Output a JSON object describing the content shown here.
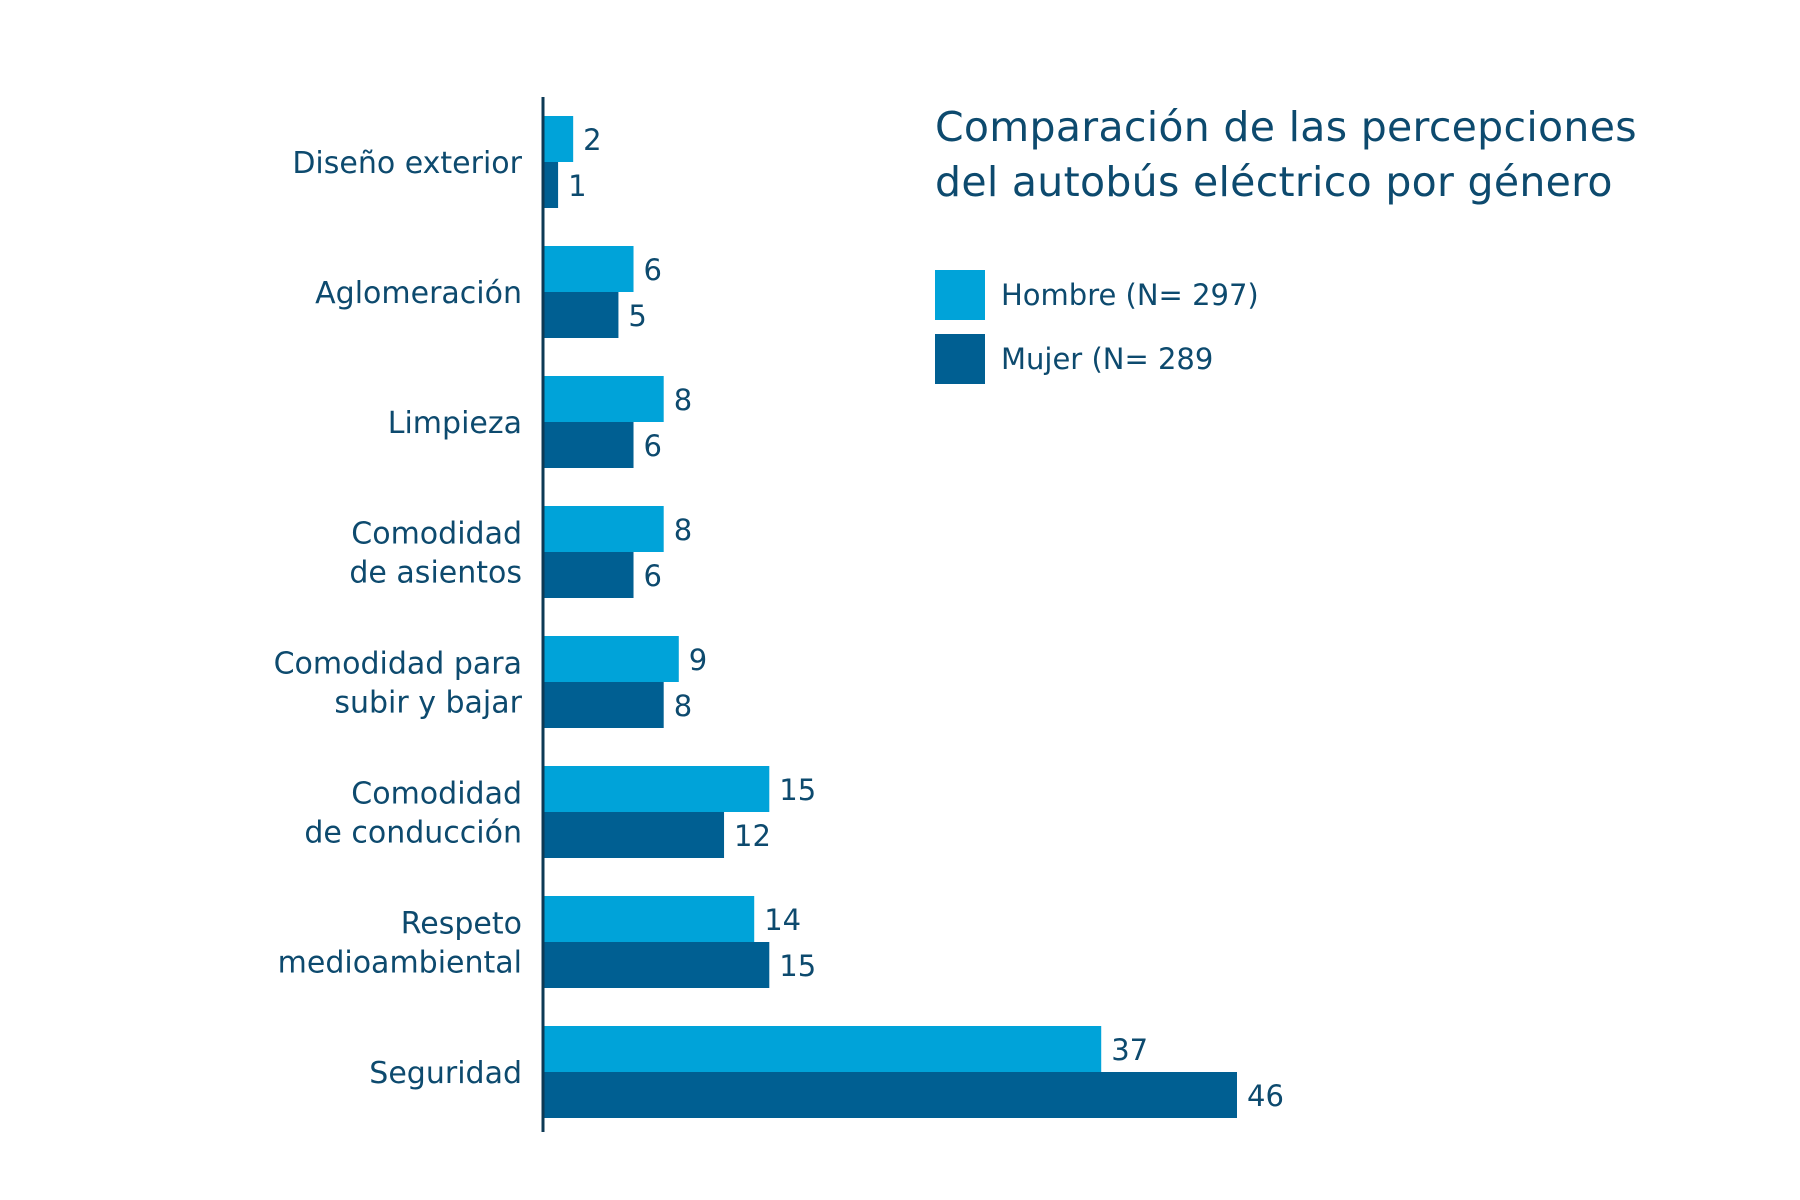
{
  "chart_data": {
    "type": "bar",
    "orientation": "horizontal",
    "title": "Comparación de las percepciones del autobús eléctrico por género",
    "title_lines": [
      "Comparación de las percepciones",
      "del autobús eléctrico por género"
    ],
    "categories": [
      [
        "Diseño exterior"
      ],
      [
        "Aglomeración"
      ],
      [
        "Limpieza"
      ],
      [
        "Comodidad",
        "de asientos"
      ],
      [
        "Comodidad para",
        "subir y bajar"
      ],
      [
        "Comodidad",
        "de conducción"
      ],
      [
        "Respeto",
        "medioambiental"
      ],
      [
        "Seguridad"
      ]
    ],
    "series": [
      {
        "name": "Hombre (N= 297)",
        "color": "#00a3d9",
        "values": [
          2,
          6,
          8,
          8,
          9,
          15,
          14,
          37
        ]
      },
      {
        "name": "Mujer (N= 289",
        "color": "#005f92",
        "values": [
          1,
          5,
          6,
          6,
          8,
          12,
          15,
          46
        ]
      }
    ],
    "xlabel": "",
    "ylabel": "",
    "xlim": [
      0,
      46
    ],
    "grid": false,
    "data_labels": true,
    "legend_position": "top-right",
    "axis_color": "#0d3a55",
    "text_color": "#0d4a6e"
  }
}
